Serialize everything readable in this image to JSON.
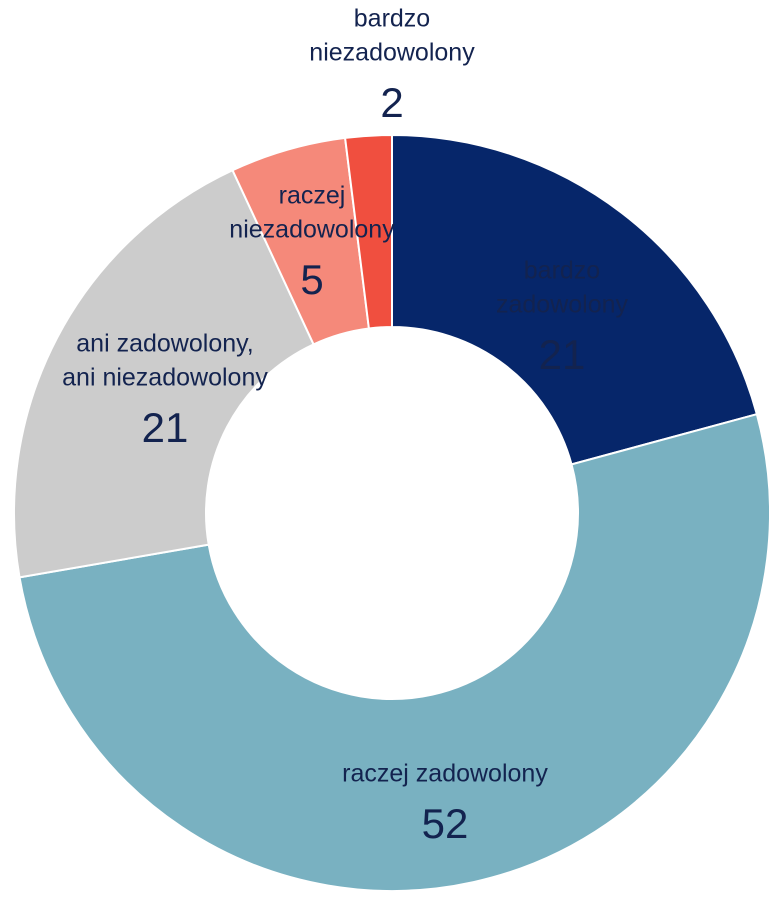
{
  "chart_data": {
    "type": "donut",
    "categories": [
      [
        "bardzo",
        "zadowolony"
      ],
      [
        "raczej zadowolony"
      ],
      [
        "ani zadowolony,",
        "ani niezadowolony"
      ],
      [
        "raczej",
        "niezadowolony"
      ],
      [
        "bardzo",
        "niezadowolony"
      ]
    ],
    "values": [
      21,
      52,
      21,
      5,
      2
    ],
    "colors": [
      "#06266a",
      "#79b1c1",
      "#cccccc",
      "#f5897a",
      "#f04f3f"
    ],
    "label_colors": [
      "#ffffff",
      "#13234f",
      "#13234f",
      "#13234f",
      "#13234f"
    ]
  }
}
